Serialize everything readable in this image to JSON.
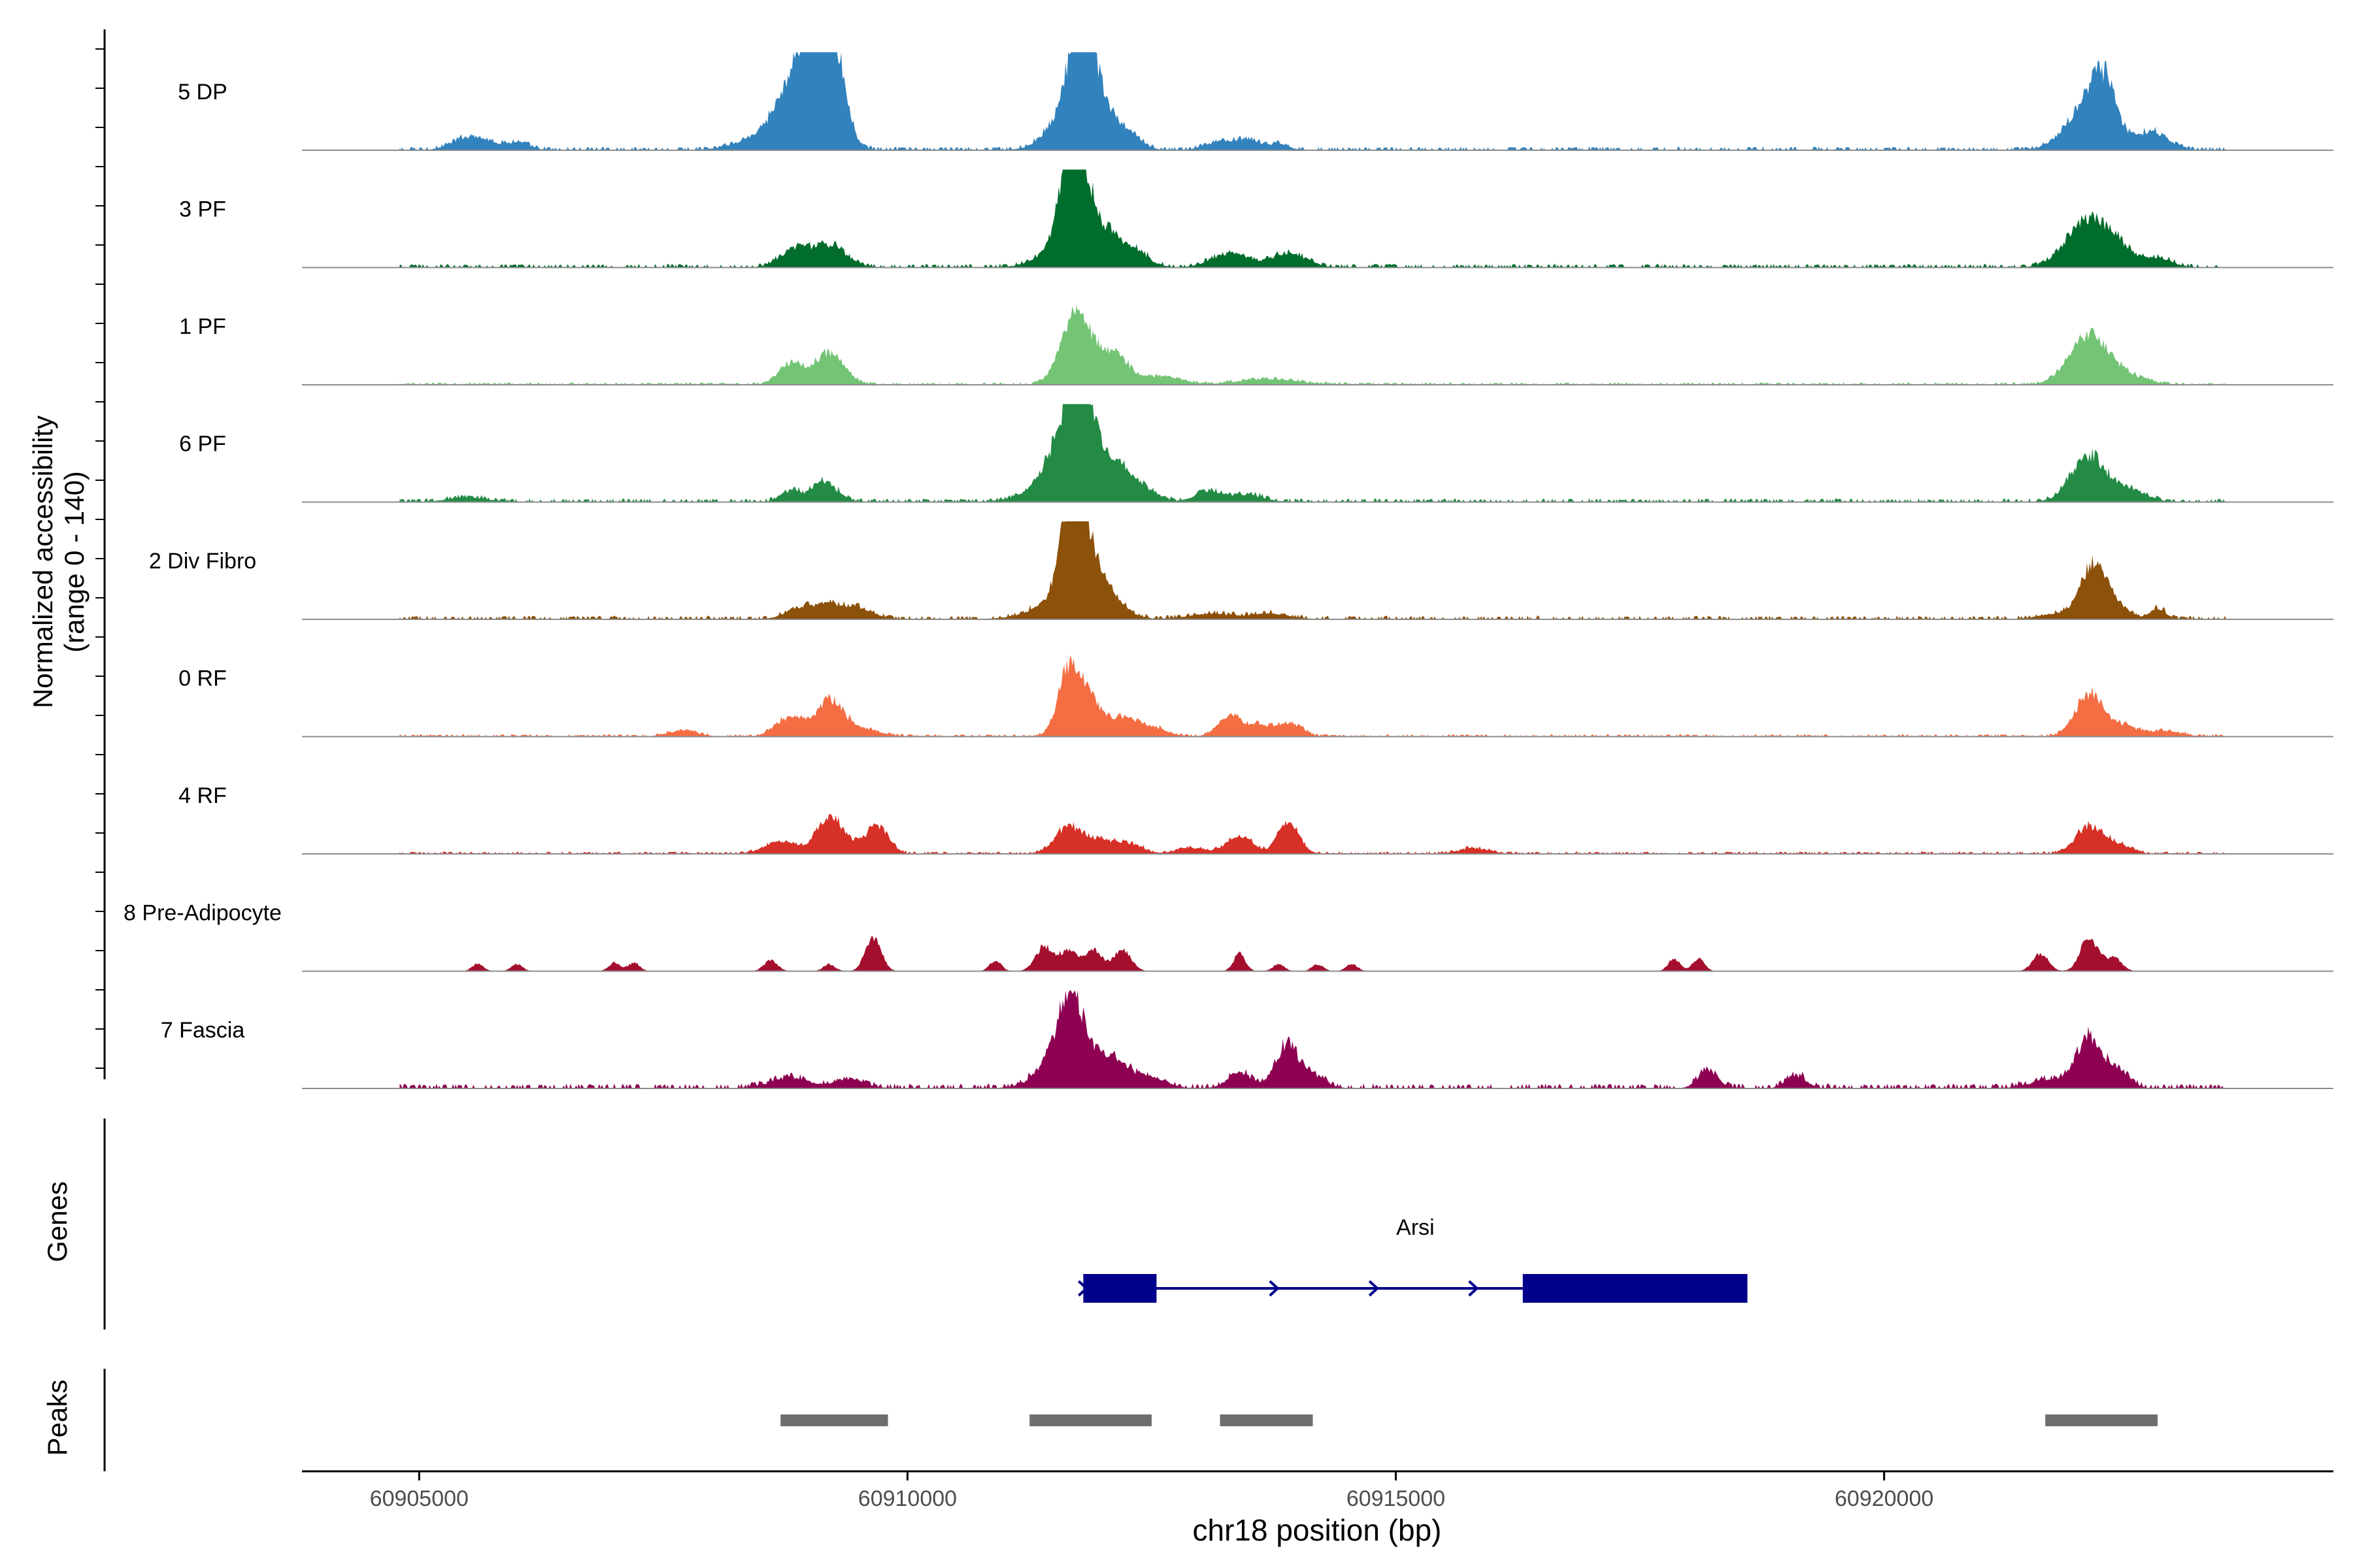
{
  "chart_data": {
    "type": "area",
    "title": "",
    "xlabel": "chr18 position (bp)",
    "ylabel": "Normalized accessibility",
    "ylabel_range": "(range 0 - 140)",
    "xlim": [
      60903800,
      60924600
    ],
    "ylim": [
      0,
      140
    ],
    "x_ticks": [
      60905000,
      60910000,
      60915000,
      60920000
    ],
    "x_tick_labels": [
      "60905000",
      "60910000",
      "60915000",
      "60920000"
    ],
    "data_start": 60904800,
    "data_end": 60923500,
    "tracks": [
      {
        "name": "5 DP",
        "color": "#3182BD",
        "peaks": [
          [
            60905550,
            180,
            20
          ],
          [
            60906000,
            120,
            10
          ],
          [
            60908700,
            300,
            30
          ],
          [
            60908950,
            200,
            105
          ],
          [
            60909150,
            140,
            90
          ],
          [
            60909250,
            120,
            70
          ],
          [
            60911700,
            80,
            90
          ],
          [
            60911850,
            80,
            80
          ],
          [
            60911650,
            200,
            55
          ],
          [
            60911950,
            120,
            55
          ],
          [
            60912200,
            150,
            30
          ],
          [
            60913200,
            150,
            12
          ],
          [
            60913500,
            120,
            12
          ],
          [
            60913800,
            100,
            8
          ],
          [
            60922100,
            220,
            65
          ],
          [
            60922250,
            120,
            60
          ],
          [
            60922750,
            160,
            25
          ]
        ],
        "noise": 3
      },
      {
        "name": "3 PF",
        "color": "#006D2C",
        "peaks": [
          [
            60908850,
            150,
            25
          ],
          [
            60909200,
            170,
            30
          ],
          [
            60911650,
            100,
            98
          ],
          [
            60911800,
            110,
            80
          ],
          [
            60911700,
            250,
            45
          ],
          [
            60912050,
            120,
            28
          ],
          [
            60912300,
            150,
            25
          ],
          [
            60913300,
            180,
            20
          ],
          [
            60913900,
            180,
            20
          ],
          [
            60922050,
            200,
            60
          ],
          [
            60922350,
            180,
            30
          ],
          [
            60922800,
            150,
            12
          ]
        ],
        "noise": 3
      },
      {
        "name": "1 PF",
        "color": "#74C476",
        "peaks": [
          [
            60908800,
            120,
            30
          ],
          [
            60909200,
            150,
            45
          ],
          [
            60911700,
            140,
            80
          ],
          [
            60911900,
            200,
            35
          ],
          [
            60912150,
            130,
            28
          ],
          [
            60912600,
            200,
            12
          ],
          [
            60913700,
            300,
            8
          ],
          [
            60922100,
            200,
            70
          ],
          [
            60922500,
            200,
            10
          ]
        ],
        "noise": 2
      },
      {
        "name": "6 PF",
        "color": "#238B45",
        "peaks": [
          [
            60908800,
            100,
            15
          ],
          [
            60909150,
            130,
            28
          ],
          [
            60911500,
            120,
            35
          ],
          [
            60911700,
            100,
            128
          ],
          [
            60911850,
            90,
            85
          ],
          [
            60911650,
            300,
            40
          ],
          [
            60912100,
            140,
            48
          ],
          [
            60912400,
            140,
            18
          ],
          [
            60913100,
            150,
            15
          ],
          [
            60913500,
            150,
            10
          ],
          [
            60922100,
            180,
            66
          ],
          [
            60922550,
            150,
            15
          ],
          [
            60905500,
            200,
            6
          ]
        ],
        "noise": 3
      },
      {
        "name": "2 Div Fibro",
        "color": "#8C510A",
        "peaks": [
          [
            60908900,
            150,
            15
          ],
          [
            60909200,
            150,
            18
          ],
          [
            60909500,
            150,
            15
          ],
          [
            60911650,
            90,
            118
          ],
          [
            60911800,
            100,
            90
          ],
          [
            60911700,
            300,
            40
          ],
          [
            60912000,
            150,
            30
          ],
          [
            60913100,
            200,
            8
          ],
          [
            60913700,
            200,
            8
          ],
          [
            60922150,
            130,
            75
          ],
          [
            60922400,
            120,
            15
          ],
          [
            60922800,
            80,
            15
          ],
          [
            60921800,
            200,
            8
          ]
        ],
        "noise": 3
      },
      {
        "name": "0 RF",
        "color": "#F46D43",
        "peaks": [
          [
            60908800,
            140,
            28
          ],
          [
            60909200,
            130,
            50
          ],
          [
            60909500,
            200,
            12
          ],
          [
            60911650,
            110,
            90
          ],
          [
            60911850,
            130,
            50
          ],
          [
            60912200,
            150,
            25
          ],
          [
            60912500,
            150,
            12
          ],
          [
            60913300,
            120,
            30
          ],
          [
            60913600,
            100,
            15
          ],
          [
            60913900,
            130,
            20
          ],
          [
            60922100,
            140,
            60
          ],
          [
            60922450,
            150,
            15
          ],
          [
            60922900,
            150,
            8
          ],
          [
            60907700,
            150,
            8
          ]
        ],
        "noise": 2
      },
      {
        "name": "4 RF",
        "color": "#D73027",
        "peaks": [
          [
            60908700,
            160,
            18
          ],
          [
            60909200,
            130,
            52
          ],
          [
            60909700,
            110,
            38
          ],
          [
            60909450,
            150,
            10
          ],
          [
            60911650,
            140,
            38
          ],
          [
            60912000,
            150,
            18
          ],
          [
            60912300,
            120,
            12
          ],
          [
            60913400,
            130,
            25
          ],
          [
            60913900,
            110,
            42
          ],
          [
            60912900,
            150,
            8
          ],
          [
            60922100,
            140,
            38
          ],
          [
            60922400,
            130,
            12
          ],
          [
            60915800,
            150,
            8
          ]
        ],
        "noise": 2
      },
      {
        "name": "8 Pre-Adipocyte",
        "color": "#A50F2E",
        "peaks": [
          [
            60905600,
            60,
            10
          ],
          [
            60906000,
            60,
            10
          ],
          [
            60907000,
            60,
            12
          ],
          [
            60907200,
            60,
            12
          ],
          [
            60908600,
            70,
            15
          ],
          [
            60909200,
            60,
            10
          ],
          [
            60909650,
            80,
            50
          ],
          [
            60910900,
            60,
            15
          ],
          [
            60911400,
            90,
            35
          ],
          [
            60911650,
            90,
            30
          ],
          [
            60911900,
            90,
            30
          ],
          [
            60912200,
            90,
            30
          ],
          [
            60913400,
            60,
            25
          ],
          [
            60913800,
            60,
            10
          ],
          [
            60914200,
            60,
            10
          ],
          [
            60914550,
            60,
            10
          ],
          [
            60917850,
            60,
            18
          ],
          [
            60918100,
            60,
            18
          ],
          [
            60921600,
            80,
            25
          ],
          [
            60922100,
            90,
            48
          ],
          [
            60922350,
            80,
            20
          ]
        ],
        "noise": 0
      },
      {
        "name": "7 Fascia",
        "color": "#8E0152",
        "peaks": [
          [
            60908800,
            200,
            15
          ],
          [
            60909400,
            150,
            12
          ],
          [
            60911700,
            140,
            98
          ],
          [
            60911550,
            200,
            45
          ],
          [
            60912100,
            160,
            42
          ],
          [
            60912500,
            150,
            15
          ],
          [
            60913400,
            120,
            22
          ],
          [
            60913900,
            120,
            62
          ],
          [
            60914200,
            100,
            15
          ],
          [
            60918200,
            100,
            25
          ],
          [
            60919100,
            100,
            18
          ],
          [
            60922100,
            130,
            70
          ],
          [
            60922400,
            110,
            25
          ],
          [
            60921700,
            200,
            12
          ]
        ],
        "noise": 4
      }
    ],
    "gene": {
      "label": "Arsi",
      "start": 60911800,
      "end": 60918600,
      "exons": [
        [
          60911800,
          60912550
        ],
        [
          60916300,
          60918600
        ]
      ],
      "strand": "+",
      "color": "#00008B"
    },
    "peaks_track": [
      [
        60908700,
        60909800
      ],
      [
        60911250,
        60912500
      ],
      [
        60913200,
        60914150
      ],
      [
        60921650,
        60922800
      ]
    ],
    "peaks_color": "#6E6E6E",
    "panel_labels": {
      "genes": "Genes",
      "peaks": "Peaks"
    }
  }
}
